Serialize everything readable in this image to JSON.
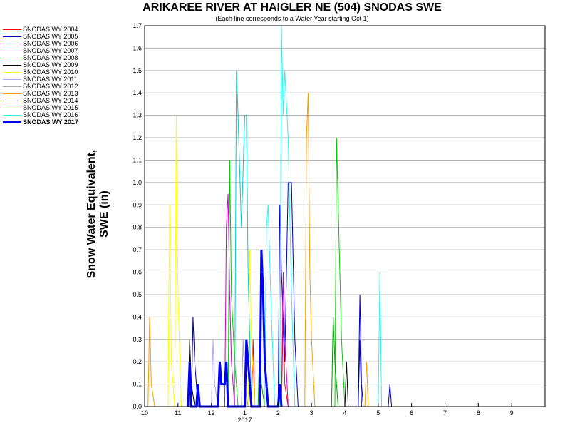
{
  "chart_data": {
    "type": "line",
    "title": "ARIKAREE RIVER AT HAIGLER NE (504) SNODAS SWE",
    "subtitle": "(Each line corresponds to a Water Year starting Oct 1)",
    "ylabel": "Snow Water Equivalent, SWE (in)",
    "xlabel": "",
    "ylim": [
      0,
      1.7
    ],
    "xlim_month_index": [
      0,
      12
    ],
    "y_ticks": [
      "0.0",
      "0.1",
      "0.2",
      "0.3",
      "0.4",
      "0.5",
      "0.6",
      "0.7",
      "0.8",
      "0.9",
      "1.0",
      "1.1",
      "1.2",
      "1.3",
      "1.4",
      "1.5",
      "1.6",
      "1.7"
    ],
    "x_ticks": [
      {
        "label": "10",
        "month_index": 0
      },
      {
        "label": "11",
        "month_index": 1
      },
      {
        "label": "12",
        "month_index": 2
      },
      {
        "label": "1",
        "month_index": 3
      },
      {
        "label": "2",
        "month_index": 4
      },
      {
        "label": "3",
        "month_index": 5
      },
      {
        "label": "4",
        "month_index": 6
      },
      {
        "label": "5",
        "month_index": 7
      },
      {
        "label": "6",
        "month_index": 8
      },
      {
        "label": "7",
        "month_index": 9
      },
      {
        "label": "8",
        "month_index": 10
      },
      {
        "label": "9",
        "month_index": 11
      }
    ],
    "x_year_label": "2017",
    "grid": true,
    "legend_placement": "left",
    "series": [
      {
        "name": "SNODAS WY 2004",
        "color": "#ff0000",
        "bold": false,
        "points": [
          [
            3.2,
            0
          ],
          [
            3.25,
            0.3
          ],
          [
            3.3,
            0
          ],
          [
            4.1,
            0
          ],
          [
            4.15,
            0.4
          ],
          [
            4.2,
            0.1
          ],
          [
            4.3,
            0
          ]
        ]
      },
      {
        "name": "SNODAS WY 2005",
        "color": "#0000cc",
        "bold": false,
        "points": [
          [
            4.0,
            0
          ],
          [
            4.05,
            0.9
          ],
          [
            4.1,
            0.6
          ],
          [
            4.2,
            0.2
          ],
          [
            4.3,
            1.0
          ],
          [
            4.4,
            1.0
          ],
          [
            4.5,
            0.3
          ],
          [
            4.6,
            0
          ],
          [
            6.4,
            0
          ],
          [
            6.45,
            0.5
          ],
          [
            6.5,
            0.1
          ],
          [
            6.55,
            0
          ],
          [
            7.3,
            0
          ],
          [
            7.35,
            0.1
          ],
          [
            7.4,
            0
          ]
        ]
      },
      {
        "name": "SNODAS WY 2006",
        "color": "#00cc00",
        "bold": false,
        "points": [
          [
            2.5,
            0
          ],
          [
            2.55,
            1.1
          ],
          [
            2.6,
            0.5
          ],
          [
            2.7,
            0.2
          ],
          [
            2.8,
            0
          ],
          [
            5.7,
            0
          ],
          [
            5.75,
            1.2
          ],
          [
            5.8,
            0.9
          ],
          [
            5.9,
            0.3
          ],
          [
            6.0,
            0
          ]
        ]
      },
      {
        "name": "SNODAS WY 2007",
        "color": "#00cccc",
        "bold": false,
        "points": [
          [
            2.7,
            0
          ],
          [
            2.75,
            1.5
          ],
          [
            2.8,
            1.3
          ],
          [
            2.9,
            0.8
          ],
          [
            3.0,
            1.3
          ],
          [
            3.05,
            1.3
          ],
          [
            3.1,
            0.6
          ],
          [
            3.2,
            0
          ]
        ]
      },
      {
        "name": "SNODAS WY 2008",
        "color": "#cc00cc",
        "bold": false,
        "points": [
          [
            2.4,
            0
          ],
          [
            2.45,
            0.8
          ],
          [
            2.5,
            0.95
          ],
          [
            2.55,
            0.5
          ],
          [
            2.6,
            0.2
          ],
          [
            2.7,
            0
          ],
          [
            4.1,
            0
          ],
          [
            4.15,
            0.6
          ],
          [
            4.2,
            0.3
          ],
          [
            4.3,
            0
          ]
        ]
      },
      {
        "name": "SNODAS WY 2009",
        "color": "#000000",
        "bold": false,
        "points": [
          [
            1.3,
            0
          ],
          [
            1.35,
            0.3
          ],
          [
            1.4,
            0.1
          ],
          [
            1.5,
            0
          ],
          [
            6.0,
            0
          ],
          [
            6.05,
            0.2
          ],
          [
            6.1,
            0
          ]
        ]
      },
      {
        "name": "SNODAS WY 2010",
        "color": "#ffff00",
        "bold": false,
        "points": [
          [
            0.7,
            0
          ],
          [
            0.75,
            0.9
          ],
          [
            0.8,
            0.2
          ],
          [
            0.9,
            0
          ],
          [
            0.95,
            1.3
          ],
          [
            1.0,
            0.5
          ],
          [
            1.1,
            0
          ],
          [
            3.1,
            0
          ],
          [
            3.15,
            0.7
          ],
          [
            3.2,
            0.3
          ],
          [
            3.3,
            0
          ]
        ]
      },
      {
        "name": "SNODAS WY 2011",
        "color": "#aaaaff",
        "bold": false,
        "points": [
          [
            2.0,
            0
          ],
          [
            2.05,
            0.3
          ],
          [
            2.1,
            0.1
          ],
          [
            2.2,
            0
          ]
        ]
      },
      {
        "name": "SNODAS WY 2012",
        "color": "#aaaaaa",
        "bold": false,
        "points": [
          [
            2.9,
            0
          ],
          [
            2.95,
            0.3
          ],
          [
            3.0,
            0.1
          ],
          [
            3.1,
            0
          ]
        ]
      },
      {
        "name": "SNODAS WY 2013",
        "color": "#ff9900",
        "bold": false,
        "points": [
          [
            0.1,
            0
          ],
          [
            0.15,
            0.4
          ],
          [
            0.2,
            0.1
          ],
          [
            0.3,
            0
          ],
          [
            4.8,
            0
          ],
          [
            4.85,
            1.2
          ],
          [
            4.9,
            1.4
          ],
          [
            4.95,
            0.6
          ],
          [
            5.0,
            0.3
          ],
          [
            5.1,
            0
          ],
          [
            6.6,
            0
          ],
          [
            6.65,
            0.2
          ],
          [
            6.7,
            0
          ]
        ]
      },
      {
        "name": "SNODAS WY 2014",
        "color": "#000088",
        "bold": false,
        "points": [
          [
            1.4,
            0
          ],
          [
            1.45,
            0.4
          ],
          [
            1.5,
            0.2
          ],
          [
            1.6,
            0
          ],
          [
            6.4,
            0
          ],
          [
            6.45,
            0.3
          ],
          [
            6.5,
            0
          ]
        ]
      },
      {
        "name": "SNODAS WY 2015",
        "color": "#009900",
        "bold": false,
        "points": [
          [
            3.4,
            0
          ],
          [
            3.45,
            0.3
          ],
          [
            3.5,
            0.1
          ],
          [
            3.6,
            0
          ],
          [
            5.6,
            0
          ],
          [
            5.65,
            0.4
          ],
          [
            5.7,
            0.2
          ],
          [
            5.8,
            0
          ]
        ]
      },
      {
        "name": "SNODAS WY 2016",
        "color": "#33eeee",
        "bold": false,
        "points": [
          [
            3.6,
            0
          ],
          [
            3.65,
            0.8
          ],
          [
            3.7,
            0.9
          ],
          [
            3.8,
            0.4
          ],
          [
            3.9,
            0
          ],
          [
            4.05,
            0
          ],
          [
            4.1,
            1.7
          ],
          [
            4.15,
            1.3
          ],
          [
            4.2,
            1.5
          ],
          [
            4.3,
            1.2
          ],
          [
            4.4,
            0.5
          ],
          [
            4.5,
            0
          ],
          [
            7.0,
            0
          ],
          [
            7.05,
            0.6
          ],
          [
            7.1,
            0
          ]
        ]
      },
      {
        "name": "SNODAS WY 2017",
        "color": "#0000ff",
        "bold": true,
        "points": [
          [
            1.3,
            0
          ],
          [
            1.35,
            0.2
          ],
          [
            1.4,
            0
          ],
          [
            1.55,
            0
          ],
          [
            1.6,
            0.1
          ],
          [
            1.65,
            0
          ],
          [
            2.2,
            0
          ],
          [
            2.25,
            0.2
          ],
          [
            2.3,
            0.1
          ],
          [
            2.4,
            0.1
          ],
          [
            2.45,
            0.2
          ],
          [
            2.5,
            0
          ],
          [
            3.0,
            0
          ],
          [
            3.05,
            0.3
          ],
          [
            3.1,
            0.2
          ],
          [
            3.2,
            0
          ],
          [
            3.45,
            0
          ],
          [
            3.5,
            0.7
          ],
          [
            3.55,
            0.5
          ],
          [
            3.6,
            0.2
          ],
          [
            3.7,
            0
          ],
          [
            4.0,
            0
          ],
          [
            4.05,
            0.1
          ],
          [
            4.1,
            0
          ]
        ]
      }
    ]
  }
}
